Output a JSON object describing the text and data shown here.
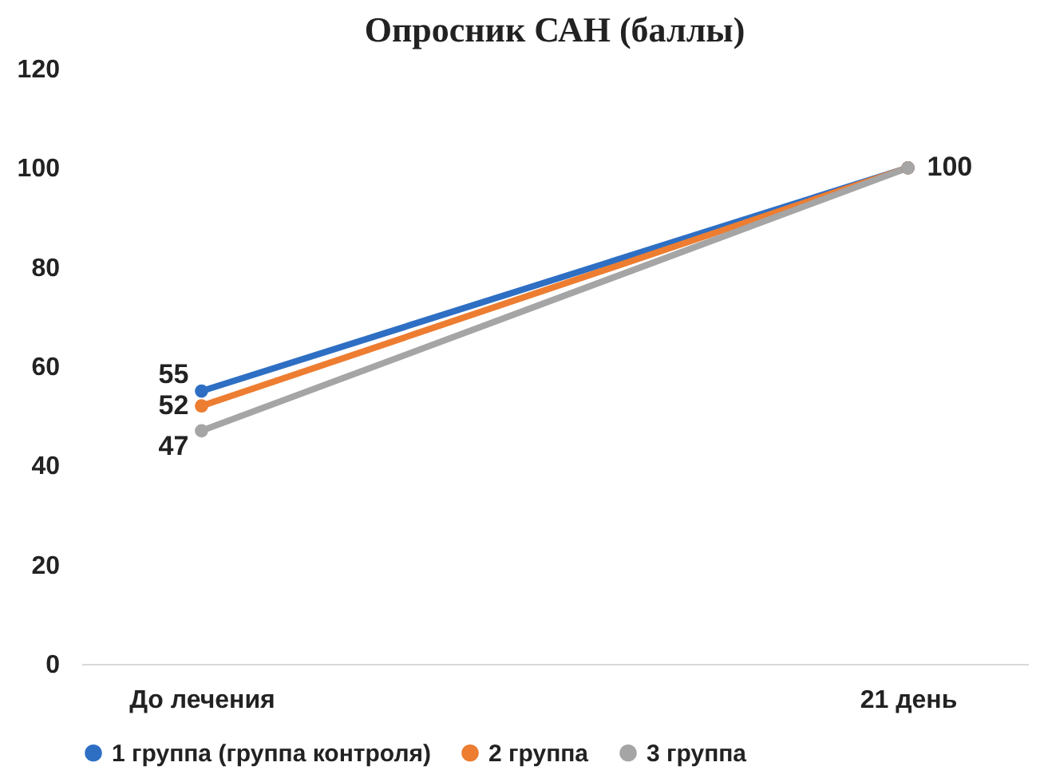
{
  "chart_data": {
    "type": "line",
    "title": "Опросник САН (баллы)",
    "categories": [
      "До лечения",
      "21 день"
    ],
    "series": [
      {
        "name": "1 группа (группа контроля)",
        "color": "#2e6fc4",
        "values": [
          55,
          100
        ],
        "value_labels": [
          "55",
          "100"
        ]
      },
      {
        "name": "2 группа",
        "color": "#ed7d31",
        "values": [
          52,
          100
        ],
        "value_labels": [
          "52",
          null
        ]
      },
      {
        "name": "3 группа",
        "color": "#a5a5a5",
        "values": [
          47,
          100
        ],
        "value_labels": [
          "47",
          null
        ]
      }
    ],
    "ylim": [
      0,
      120
    ],
    "yticks": [
      0,
      20,
      40,
      60,
      80,
      100,
      120
    ],
    "grid": false,
    "legend": "bottom",
    "marker": "circle",
    "line_style": "solid"
  }
}
